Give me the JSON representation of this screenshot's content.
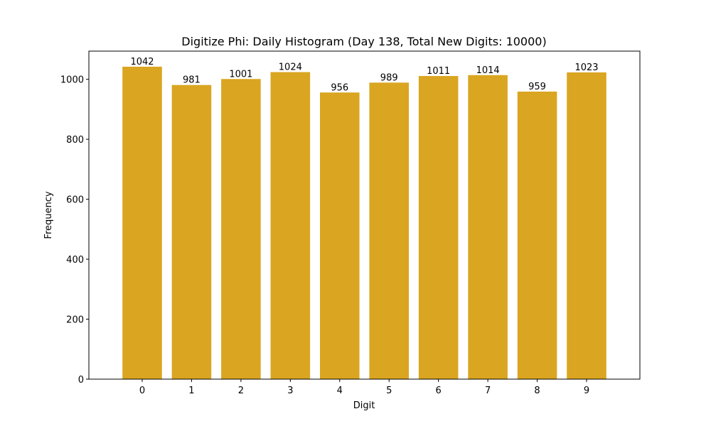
{
  "chart_data": {
    "type": "bar",
    "title": "Digitize Phi: Daily Histogram (Day 138, Total New Digits: 10000)",
    "xlabel": "Digit",
    "ylabel": "Frequency",
    "categories": [
      "0",
      "1",
      "2",
      "3",
      "4",
      "5",
      "6",
      "7",
      "8",
      "9"
    ],
    "values": [
      1042,
      981,
      1001,
      1024,
      956,
      989,
      1011,
      1014,
      959,
      1023
    ],
    "bar_labels": [
      "1042",
      "981",
      "1001",
      "1024",
      "956",
      "989",
      "1011",
      "1014",
      "959",
      "1023"
    ],
    "yticks": [
      0,
      200,
      400,
      600,
      800,
      1000
    ],
    "ylim": [
      0,
      1094
    ],
    "grid": false,
    "legend": null,
    "colors": {
      "bar": "#DAA520",
      "axis": "#000000",
      "background": "#ffffff"
    }
  }
}
